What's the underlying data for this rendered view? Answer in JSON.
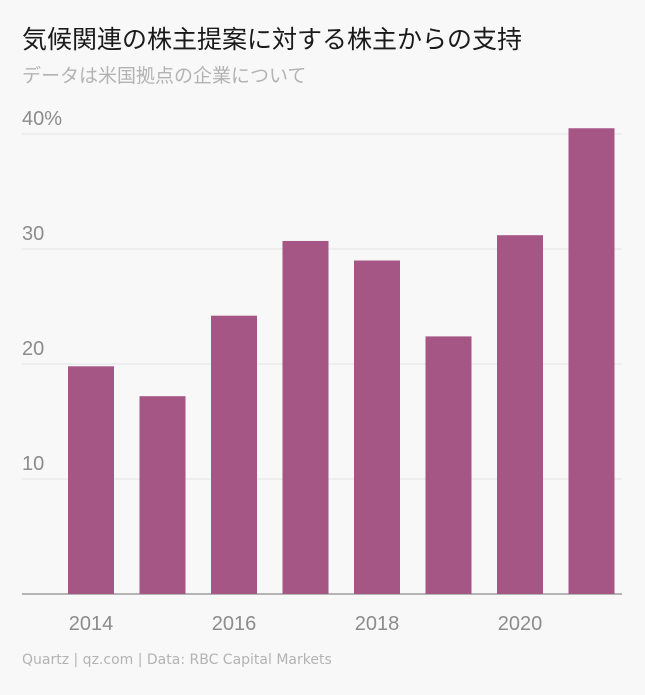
{
  "header": {
    "title": "気候関連の株主提案に対する株主からの支持",
    "subtitle": "データは米国拠点の企業について"
  },
  "footer": {
    "source": "Quartz | qz.com | Data: RBC Capital Markets"
  },
  "colors": {
    "bar": "#a55685",
    "grid": "#e3e3e3",
    "axis": "#8c8c8c"
  },
  "chart_data": {
    "type": "bar",
    "title": "気候関連の株主提案に対する株主からの支持",
    "subtitle": "データは米国拠点の企業について",
    "categories": [
      "2014",
      "2015",
      "2016",
      "2017",
      "2018",
      "2019",
      "2020",
      "2021"
    ],
    "values": [
      19.8,
      17.2,
      24.2,
      30.7,
      29.0,
      22.4,
      31.2,
      40.5
    ],
    "x_tick_labels": [
      "2014",
      "2016",
      "2018",
      "2020"
    ],
    "y_ticks": [
      10,
      20,
      30,
      40
    ],
    "y_tick_labels": [
      "10",
      "20",
      "30",
      "40%"
    ],
    "ylim": [
      0,
      40
    ],
    "ylabel": "",
    "xlabel": "",
    "grid": true,
    "legend": false
  }
}
